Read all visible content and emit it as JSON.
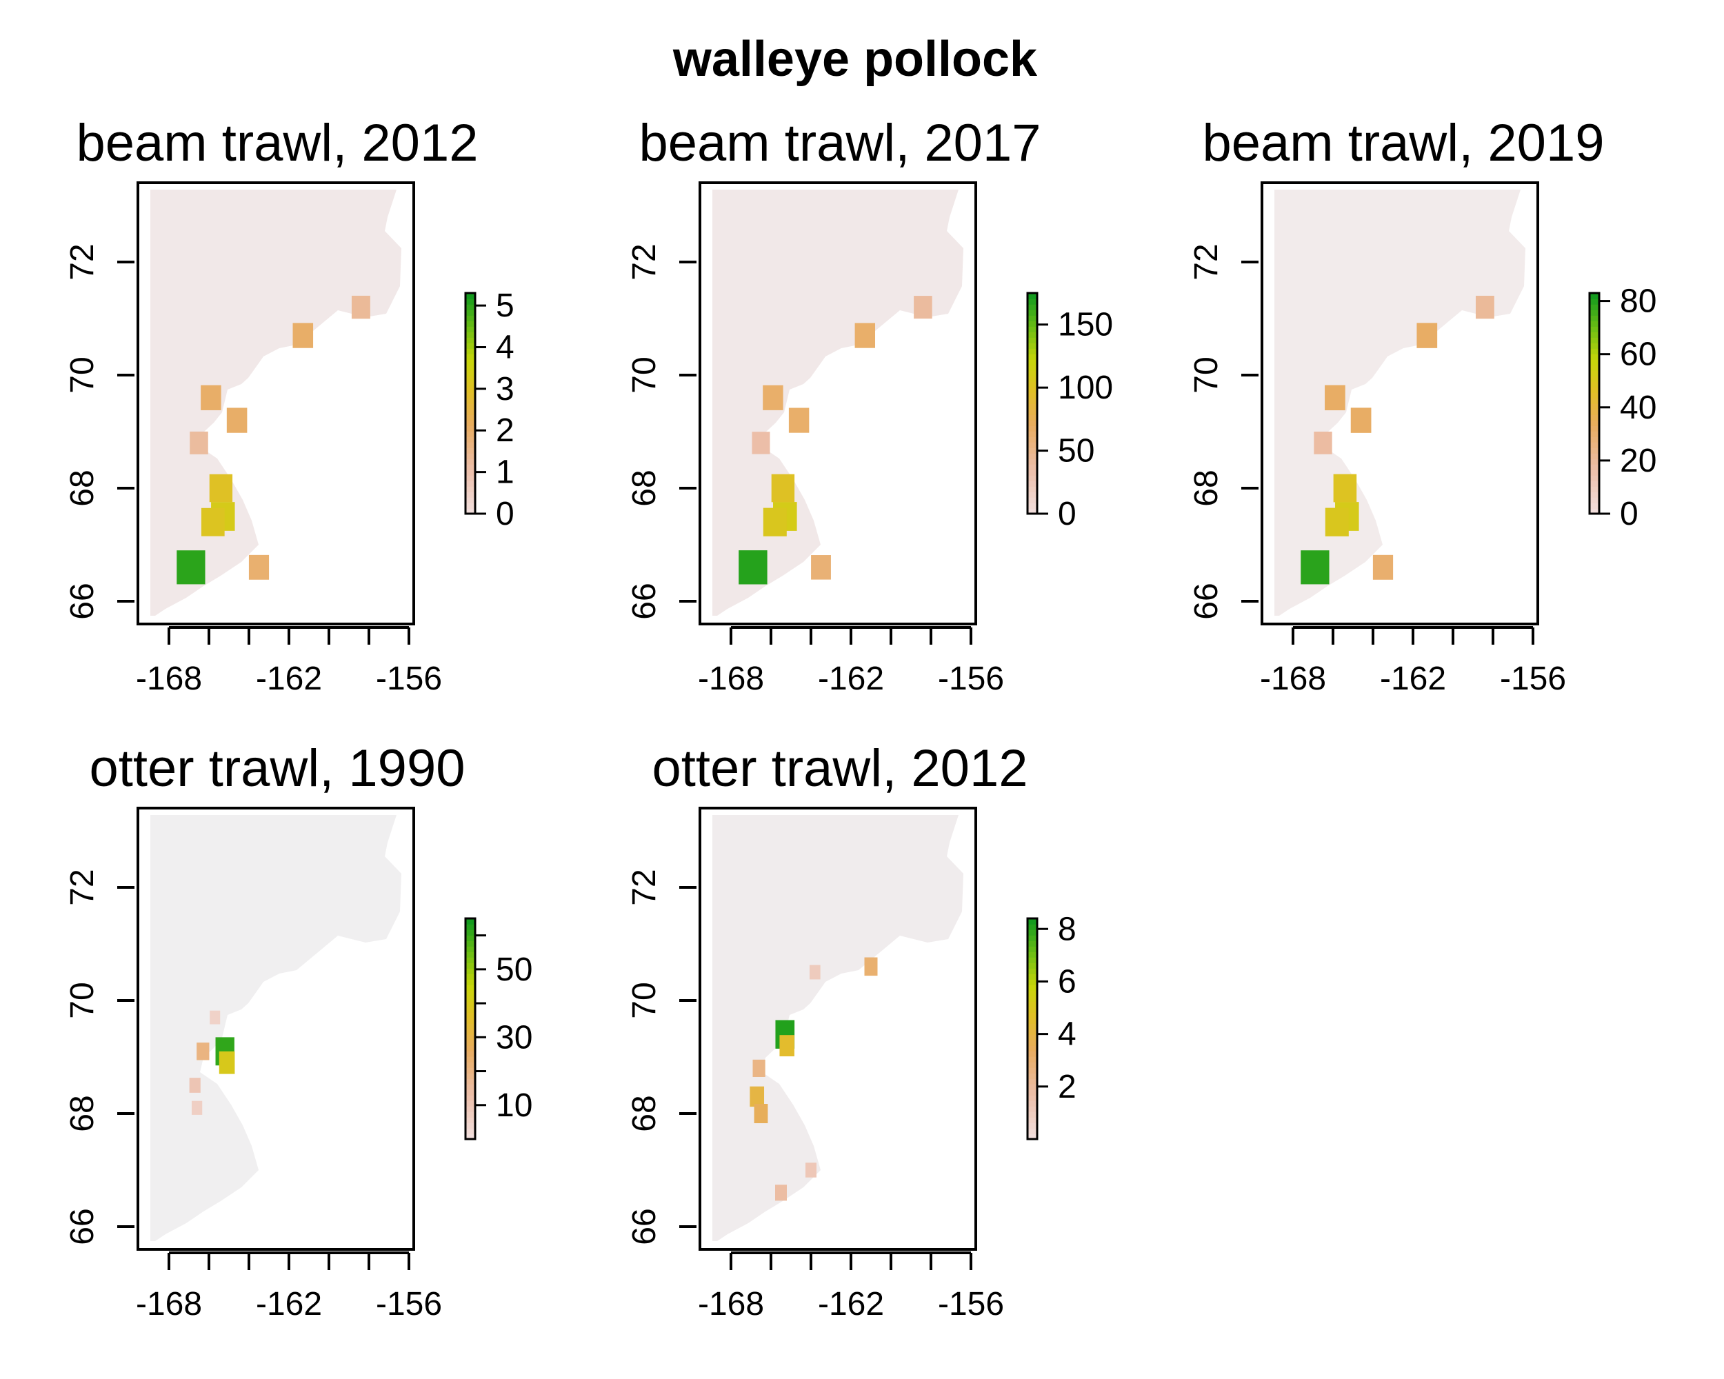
{
  "figure": {
    "title": "walleye pollock"
  },
  "chart_data": [
    {
      "type": "heatmap",
      "title": "beam trawl, 2012",
      "xlabel": "",
      "ylabel": "",
      "xlim": [
        -170,
        -155
      ],
      "ylim": [
        65.5,
        73.2
      ],
      "x_ticks": [
        -168,
        -166,
        -164,
        -162,
        -160,
        -158,
        -156
      ],
      "x_tick_labels": [
        "-168",
        "-162",
        "-156"
      ],
      "y_ticks": [
        66,
        68,
        70,
        72
      ],
      "y_tick_labels": [
        "66",
        "68",
        "70",
        "72"
      ],
      "legend": {
        "position": "right",
        "ticks": [
          0,
          1,
          2,
          3,
          4,
          5
        ],
        "tick_labels": [
          "0",
          "1",
          "2",
          "3",
          "4",
          "5"
        ],
        "max": 5.3
      },
      "hotspots": [
        {
          "lon": -166.9,
          "lat": 66.6,
          "value": 5.1
        },
        {
          "lon": -165.3,
          "lat": 67.5,
          "value": 3.3
        },
        {
          "lon": -165.8,
          "lat": 67.4,
          "value": 3.1
        },
        {
          "lon": -165.4,
          "lat": 68.0,
          "value": 3.0
        },
        {
          "lon": -163.5,
          "lat": 66.6,
          "value": 1.9
        },
        {
          "lon": -164.6,
          "lat": 69.2,
          "value": 2.0
        },
        {
          "lon": -165.9,
          "lat": 69.6,
          "value": 2.0
        },
        {
          "lon": -161.3,
          "lat": 70.7,
          "value": 2.0
        },
        {
          "lon": -158.4,
          "lat": 71.2,
          "value": 1.3
        },
        {
          "lon": -166.5,
          "lat": 68.8,
          "value": 1.2
        }
      ]
    },
    {
      "type": "heatmap",
      "title": "beam trawl, 2017",
      "xlabel": "",
      "ylabel": "",
      "xlim": [
        -170,
        -155
      ],
      "ylim": [
        65.5,
        73.2
      ],
      "x_ticks": [
        -168,
        -166,
        -164,
        -162,
        -160,
        -158,
        -156
      ],
      "x_tick_labels": [
        "-168",
        "-162",
        "-156"
      ],
      "y_ticks": [
        66,
        68,
        70,
        72
      ],
      "y_tick_labels": [
        "66",
        "68",
        "70",
        "72"
      ],
      "legend": {
        "position": "right",
        "ticks": [
          0,
          50,
          100,
          150
        ],
        "tick_labels": [
          "0",
          "50",
          "100",
          "150"
        ],
        "max": 175
      },
      "hotspots": [
        {
          "lon": -166.9,
          "lat": 66.6,
          "value": 170
        },
        {
          "lon": -165.3,
          "lat": 67.5,
          "value": 110
        },
        {
          "lon": -165.8,
          "lat": 67.4,
          "value": 105
        },
        {
          "lon": -165.4,
          "lat": 68.0,
          "value": 100
        },
        {
          "lon": -163.5,
          "lat": 66.6,
          "value": 60
        },
        {
          "lon": -164.6,
          "lat": 69.2,
          "value": 65
        },
        {
          "lon": -165.9,
          "lat": 69.6,
          "value": 65
        },
        {
          "lon": -161.3,
          "lat": 70.7,
          "value": 65
        },
        {
          "lon": -158.4,
          "lat": 71.2,
          "value": 40
        },
        {
          "lon": -166.5,
          "lat": 68.8,
          "value": 35
        }
      ]
    },
    {
      "type": "heatmap",
      "title": "beam trawl, 2019",
      "xlabel": "",
      "ylabel": "",
      "xlim": [
        -170,
        -155
      ],
      "ylim": [
        65.5,
        73.2
      ],
      "x_ticks": [
        -168,
        -166,
        -164,
        -162,
        -160,
        -158,
        -156
      ],
      "x_tick_labels": [
        "-168",
        "-162",
        "-156"
      ],
      "y_ticks": [
        66,
        68,
        70,
        72
      ],
      "y_tick_labels": [
        "66",
        "68",
        "70",
        "72"
      ],
      "legend": {
        "position": "right",
        "ticks": [
          0,
          20,
          40,
          60,
          80
        ],
        "tick_labels": [
          "0",
          "20",
          "40",
          "60",
          "80"
        ],
        "max": 83
      },
      "hotspots": [
        {
          "lon": -166.9,
          "lat": 66.6,
          "value": 80
        },
        {
          "lon": -165.3,
          "lat": 67.5,
          "value": 52
        },
        {
          "lon": -165.8,
          "lat": 67.4,
          "value": 50
        },
        {
          "lon": -165.4,
          "lat": 68.0,
          "value": 48
        },
        {
          "lon": -163.5,
          "lat": 66.6,
          "value": 30
        },
        {
          "lon": -164.6,
          "lat": 69.2,
          "value": 32
        },
        {
          "lon": -165.9,
          "lat": 69.6,
          "value": 32
        },
        {
          "lon": -161.3,
          "lat": 70.7,
          "value": 32
        },
        {
          "lon": -158.4,
          "lat": 71.2,
          "value": 20
        },
        {
          "lon": -166.5,
          "lat": 68.8,
          "value": 18
        }
      ]
    },
    {
      "type": "heatmap",
      "title": "otter trawl, 1990",
      "xlabel": "",
      "ylabel": "",
      "xlim": [
        -170,
        -155
      ],
      "ylim": [
        65.5,
        73.2
      ],
      "x_ticks": [
        -168,
        -166,
        -164,
        -162,
        -160,
        -158,
        -156
      ],
      "x_tick_labels": [
        "-168",
        "-162",
        "-156"
      ],
      "y_ticks": [
        66,
        68,
        70,
        72
      ],
      "y_tick_labels": [
        "66",
        "68",
        "70",
        "72"
      ],
      "legend": {
        "position": "right",
        "ticks": [
          10,
          20,
          30,
          40,
          50,
          60
        ],
        "tick_labels": [
          "10",
          "",
          "30",
          "",
          "50",
          ""
        ],
        "max": 65
      },
      "hotspots": [
        {
          "lon": -165.2,
          "lat": 69.1,
          "value": 62
        },
        {
          "lon": -165.1,
          "lat": 68.9,
          "value": 40
        },
        {
          "lon": -166.3,
          "lat": 69.1,
          "value": 20
        },
        {
          "lon": -166.7,
          "lat": 68.5,
          "value": 10
        },
        {
          "lon": -166.6,
          "lat": 68.1,
          "value": 6
        },
        {
          "lon": -165.7,
          "lat": 69.7,
          "value": 5
        }
      ]
    },
    {
      "type": "heatmap",
      "title": "otter trawl, 2012",
      "xlabel": "",
      "ylabel": "",
      "xlim": [
        -170,
        -155
      ],
      "ylim": [
        65.5,
        73.2
      ],
      "x_ticks": [
        -168,
        -166,
        -164,
        -162,
        -160,
        -158,
        -156
      ],
      "x_tick_labels": [
        "-168",
        "-162",
        "-156"
      ],
      "y_ticks": [
        66,
        68,
        70,
        72
      ],
      "y_tick_labels": [
        "66",
        "68",
        "70",
        "72"
      ],
      "legend": {
        "position": "right",
        "ticks": [
          2,
          4,
          6,
          8
        ],
        "tick_labels": [
          "2",
          "4",
          "6",
          "8"
        ],
        "max": 8.4
      },
      "hotspots": [
        {
          "lon": -165.3,
          "lat": 69.4,
          "value": 8.2
        },
        {
          "lon": -165.2,
          "lat": 69.2,
          "value": 4.5
        },
        {
          "lon": -166.7,
          "lat": 68.3,
          "value": 4.0
        },
        {
          "lon": -166.5,
          "lat": 68.0,
          "value": 3.5
        },
        {
          "lon": -166.6,
          "lat": 68.8,
          "value": 2.5
        },
        {
          "lon": -161.0,
          "lat": 70.6,
          "value": 3.0
        },
        {
          "lon": -165.5,
          "lat": 66.6,
          "value": 1.8
        },
        {
          "lon": -164.0,
          "lat": 67.0,
          "value": 1.2
        },
        {
          "lon": -163.8,
          "lat": 70.5,
          "value": 1.0
        }
      ]
    }
  ]
}
